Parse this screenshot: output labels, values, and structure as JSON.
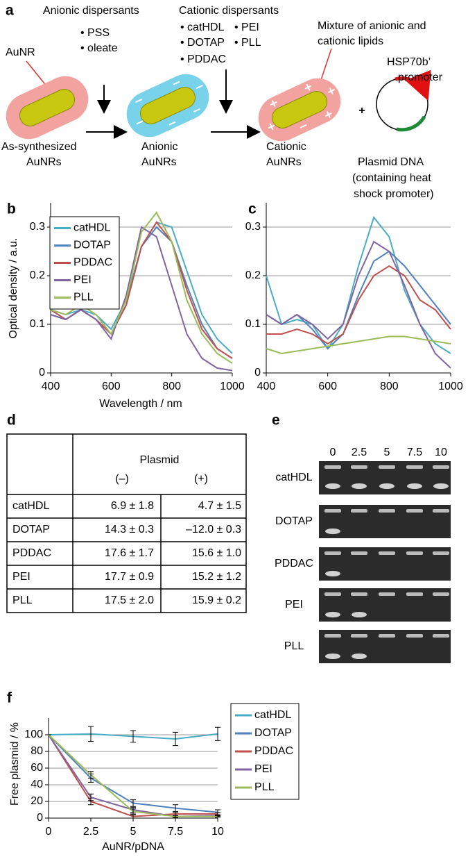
{
  "diagram": {
    "label": "a",
    "anionic_title": "Anionic dispersants",
    "anionic_items": [
      "• PSS",
      "• oleate"
    ],
    "cationic_title": "Cationic dispersants",
    "cationic_items": [
      "• catHDL",
      "• PEI",
      "• DOTAP",
      "• PLL",
      "• PDDAC"
    ],
    "lipid_note": [
      "Mixture of anionic and",
      "cationic lipids"
    ],
    "rod_label": "AuNR",
    "promoter_label": [
      "HSP70b’",
      "promoter"
    ],
    "stage_1": [
      "As-synthesized",
      "AuNRs"
    ],
    "stage_2": [
      "Anionic",
      "AuNRs"
    ],
    "stage_3": [
      "Cationic",
      "AuNRs"
    ],
    "plus": "+",
    "plasmid": [
      "Plasmid DNA",
      "(containing heat",
      "shock promoter)"
    ]
  },
  "chart_data": [
    {
      "type": "line",
      "label": "b",
      "x_label": "Wavelength / nm",
      "y_label": "Optical density / a.u.",
      "x": [
        400,
        450,
        500,
        550,
        600,
        650,
        700,
        750,
        800,
        850,
        900,
        950,
        1000
      ],
      "xlim": [
        400,
        1000
      ],
      "xticks": [
        400,
        600,
        800,
        1000
      ],
      "ylim": [
        0,
        0.35
      ],
      "yticks": [
        0,
        0.1,
        0.2,
        0.3
      ],
      "grid": true,
      "legend": "top-left",
      "series": [
        {
          "name": "catHDL",
          "color": "#4bacc6",
          "values": [
            0.13,
            0.12,
            0.13,
            0.12,
            0.09,
            0.15,
            0.26,
            0.31,
            0.3,
            0.21,
            0.12,
            0.07,
            0.04
          ]
        },
        {
          "name": "DOTAP",
          "color": "#4f81bd",
          "values": [
            0.12,
            0.11,
            0.13,
            0.11,
            0.08,
            0.14,
            0.26,
            0.3,
            0.27,
            0.18,
            0.1,
            0.05,
            0.03
          ]
        },
        {
          "name": "PDDAC",
          "color": "#c0504d",
          "values": [
            0.13,
            0.11,
            0.13,
            0.11,
            0.08,
            0.14,
            0.26,
            0.31,
            0.27,
            0.17,
            0.09,
            0.05,
            0.03
          ]
        },
        {
          "name": "PEI",
          "color": "#8064a2",
          "values": [
            0.12,
            0.11,
            0.13,
            0.11,
            0.07,
            0.16,
            0.3,
            0.28,
            0.18,
            0.08,
            0.03,
            0.01,
            0.005
          ]
        },
        {
          "name": "PLL",
          "color": "#9bbb59",
          "values": [
            0.13,
            0.12,
            0.14,
            0.12,
            0.08,
            0.15,
            0.29,
            0.33,
            0.27,
            0.15,
            0.08,
            0.04,
            0.02
          ]
        }
      ]
    },
    {
      "type": "line",
      "label": "c",
      "x": [
        400,
        450,
        500,
        550,
        600,
        650,
        700,
        750,
        800,
        850,
        900,
        950,
        1000
      ],
      "xlim": [
        400,
        1000
      ],
      "xticks": [
        400,
        600,
        800,
        1000
      ],
      "ylim": [
        0,
        0.35
      ],
      "yticks": [
        0,
        0.1,
        0.2,
        0.3
      ],
      "grid": true,
      "series": [
        {
          "color": "#4bacc6",
          "values": [
            0.2,
            0.1,
            0.11,
            0.1,
            0.05,
            0.1,
            0.22,
            0.32,
            0.28,
            0.17,
            0.1,
            0.06,
            0.04
          ]
        },
        {
          "color": "#4f81bd",
          "values": [
            0.12,
            0.1,
            0.12,
            0.09,
            0.05,
            0.08,
            0.16,
            0.23,
            0.25,
            0.22,
            0.18,
            0.14,
            0.1
          ]
        },
        {
          "color": "#c0504d",
          "values": [
            0.08,
            0.08,
            0.09,
            0.08,
            0.06,
            0.08,
            0.15,
            0.2,
            0.22,
            0.2,
            0.15,
            0.13,
            0.09
          ]
        },
        {
          "color": "#8064a2",
          "values": [
            0.12,
            0.1,
            0.12,
            0.1,
            0.07,
            0.1,
            0.2,
            0.27,
            0.25,
            0.18,
            0.1,
            0.04,
            0.01
          ]
        },
        {
          "color": "#9bbb59",
          "values": [
            0.05,
            0.04,
            0.045,
            0.05,
            0.055,
            0.06,
            0.065,
            0.07,
            0.075,
            0.075,
            0.07,
            0.065,
            0.06
          ]
        }
      ]
    },
    {
      "type": "line",
      "label": "f",
      "x_label": "AuNR/pDNA",
      "y_label": "Free plasmid / %",
      "x": [
        0,
        2.5,
        5,
        7.5,
        10
      ],
      "xlim": [
        0,
        10
      ],
      "xticks": [
        0,
        2.5,
        5,
        7.5,
        10
      ],
      "ylim": [
        0,
        120
      ],
      "yticks": [
        0,
        20,
        40,
        60,
        80,
        100
      ],
      "grid": true,
      "legend": "right",
      "series": [
        {
          "name": "catHDL",
          "color": "#4bacc6",
          "values": [
            100,
            101,
            98,
            95,
            101
          ],
          "errors": [
            0,
            9,
            7,
            8,
            8
          ]
        },
        {
          "name": "DOTAP",
          "color": "#4f81bd",
          "values": [
            100,
            48,
            18,
            12,
            7
          ],
          "errors": [
            0,
            5,
            4,
            4,
            3
          ]
        },
        {
          "name": "PDDAC",
          "color": "#c0504d",
          "values": [
            100,
            20,
            2,
            5,
            5
          ],
          "errors": [
            0,
            4,
            2,
            2,
            2
          ]
        },
        {
          "name": "PEI",
          "color": "#8064a2",
          "values": [
            100,
            25,
            10,
            2,
            3
          ],
          "errors": [
            0,
            4,
            3,
            1,
            1
          ]
        },
        {
          "name": "PLL",
          "color": "#9bbb59",
          "values": [
            100,
            52,
            8,
            2,
            2
          ],
          "errors": [
            0,
            4,
            3,
            1,
            1
          ]
        }
      ]
    }
  ],
  "table": {
    "label": "d",
    "group_header": "Plasmid",
    "columns": [
      "(–)",
      "(+)"
    ],
    "rows": [
      [
        "catHDL",
        "6.9 ± 1.8",
        "4.7 ± 1.5"
      ],
      [
        "DOTAP",
        "14.3 ± 0.3",
        "–12.0 ± 0.3"
      ],
      [
        "PDDAC",
        "17.6 ± 1.7",
        "15.6 ± 1.0"
      ],
      [
        "PEI",
        "17.7 ± 0.9",
        "15.2 ± 1.2"
      ],
      [
        "PLL",
        "17.5 ± 2.0",
        "15.9 ± 0.2"
      ]
    ]
  },
  "gel": {
    "label": "e",
    "lanes": [
      "0",
      "2.5",
      "5",
      "7.5",
      "10"
    ],
    "rows": [
      "catHDL",
      "DOTAP",
      "PDDAC",
      "PEI",
      "PLL"
    ]
  }
}
